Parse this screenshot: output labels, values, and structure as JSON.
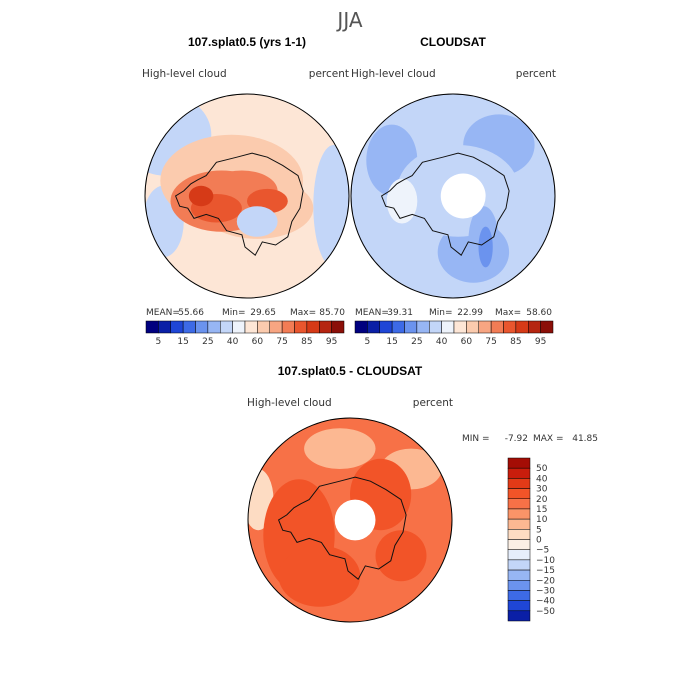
{
  "figure": {
    "title": "JJA"
  },
  "chart_data": [
    {
      "type": "heatmap",
      "projection": "south-polar-stereographic",
      "title": "107.splat0.5 (yrs 1-1)",
      "left_label": "High-level cloud",
      "right_label": "percent",
      "stats": {
        "mean_label": "MEAN=",
        "mean": "55.66",
        "min_label": "Min=",
        "min": "29.65",
        "max_label": "Max=",
        "max": "85.70"
      },
      "colorbar_ticks": [
        "5",
        "15",
        "25",
        "40",
        "60",
        "75",
        "85",
        "95"
      ],
      "colorbar_colors": [
        "#00007f",
        "#0a1fa6",
        "#1f46d6",
        "#3d6ae6",
        "#6b93ee",
        "#97b6f4",
        "#c3d6f8",
        "#eef3fb",
        "#fde6d6",
        "#fbcbae",
        "#f7a582",
        "#f27c55",
        "#e9562e",
        "#d63a17",
        "#b52510",
        "#8b0f08"
      ],
      "regions": [
        {
          "shape": "ellipse",
          "cx": 0.0,
          "cy": 0.0,
          "rx": 1.0,
          "ry": 1.0,
          "value": 60
        },
        {
          "shape": "ellipse",
          "cx": -0.8,
          "cy": -0.6,
          "rx": 0.45,
          "ry": 0.4,
          "value": 45
        },
        {
          "shape": "ellipse",
          "cx": 0.85,
          "cy": 0.1,
          "rx": 0.2,
          "ry": 0.6,
          "value": 45
        },
        {
          "shape": "ellipse",
          "cx": -0.82,
          "cy": 0.25,
          "rx": 0.2,
          "ry": 0.35,
          "value": 45
        },
        {
          "shape": "ellipse",
          "cx": -0.15,
          "cy": -0.15,
          "rx": 0.7,
          "ry": 0.45,
          "value": 65
        },
        {
          "shape": "ellipse",
          "cx": 0.1,
          "cy": 0.12,
          "rx": 0.55,
          "ry": 0.3,
          "value": 65
        },
        {
          "shape": "ellipse",
          "cx": -0.25,
          "cy": 0.05,
          "rx": 0.5,
          "ry": 0.3,
          "value": 75
        },
        {
          "shape": "ellipse",
          "cx": -0.05,
          "cy": -0.05,
          "rx": 0.35,
          "ry": 0.2,
          "value": 75
        },
        {
          "shape": "ellipse",
          "cx": -0.3,
          "cy": 0.12,
          "rx": 0.25,
          "ry": 0.14,
          "value": 80
        },
        {
          "shape": "ellipse",
          "cx": 0.2,
          "cy": 0.05,
          "rx": 0.2,
          "ry": 0.12,
          "value": 80
        },
        {
          "shape": "ellipse",
          "cx": 0.1,
          "cy": 0.25,
          "rx": 0.2,
          "ry": 0.15,
          "value": 45
        },
        {
          "shape": "ellipse",
          "cx": -0.45,
          "cy": 0.0,
          "rx": 0.12,
          "ry": 0.1,
          "value": 85
        }
      ]
    },
    {
      "type": "heatmap",
      "projection": "south-polar-stereographic",
      "title": "CLOUDSAT",
      "left_label": "High-level cloud",
      "right_label": "percent",
      "stats": {
        "mean_label": "MEAN=",
        "mean": "39.31",
        "min_label": "Min=",
        "min": "22.99",
        "max_label": "Max=",
        "max": "58.60"
      },
      "colorbar_ticks": [
        "5",
        "15",
        "25",
        "40",
        "60",
        "75",
        "85",
        "95"
      ],
      "colorbar_colors": [
        "#00007f",
        "#0a1fa6",
        "#1f46d6",
        "#3d6ae6",
        "#6b93ee",
        "#97b6f4",
        "#c3d6f8",
        "#eef3fb",
        "#fde6d6",
        "#fbcbae",
        "#f7a582",
        "#f27c55",
        "#e9562e",
        "#d63a17",
        "#b52510",
        "#8b0f08"
      ],
      "regions": [
        {
          "shape": "ellipse",
          "cx": 0.0,
          "cy": 0.0,
          "rx": 1.0,
          "ry": 1.0,
          "value": 40
        },
        {
          "shape": "ellipse",
          "cx": 0.45,
          "cy": -0.5,
          "rx": 0.35,
          "ry": 0.3,
          "value": 35
        },
        {
          "shape": "ellipse",
          "cx": -0.6,
          "cy": -0.35,
          "rx": 0.25,
          "ry": 0.35,
          "value": 35
        },
        {
          "shape": "ellipse",
          "cx": 0.2,
          "cy": 0.55,
          "rx": 0.35,
          "ry": 0.3,
          "value": 35
        },
        {
          "shape": "ellipse",
          "cx": 0.05,
          "cy": -0.05,
          "rx": 0.6,
          "ry": 0.45,
          "value": 45
        },
        {
          "shape": "ellipse",
          "cx": 0.3,
          "cy": 0.45,
          "rx": 0.15,
          "ry": 0.35,
          "value": 30
        },
        {
          "shape": "ellipse",
          "cx": 0.32,
          "cy": 0.5,
          "rx": 0.07,
          "ry": 0.2,
          "value": 25
        },
        {
          "shape": "ellipse",
          "cx": -0.5,
          "cy": 0.05,
          "rx": 0.15,
          "ry": 0.22,
          "value": 55
        },
        {
          "shape": "ellipse",
          "cx": 0.1,
          "cy": 0.0,
          "rx": 0.22,
          "ry": 0.22,
          "mask": true
        }
      ]
    },
    {
      "type": "heatmap",
      "projection": "south-polar-stereographic",
      "title": "107.splat0.5 - CLOUDSAT",
      "left_label": "High-level cloud",
      "right_label": "percent",
      "stats": {
        "min_label": "MIN =",
        "min": "-7.92",
        "max_label": "MAX =",
        "max": "41.85"
      },
      "colorbar_ticks": [
        "50",
        "40",
        "30",
        "20",
        "15",
        "10",
        "5",
        "0",
        "−5",
        "−10",
        "−15",
        "−20",
        "−30",
        "−40",
        "−50"
      ],
      "colorbar_colors": [
        "#a40d05",
        "#c91d0c",
        "#e23a17",
        "#f25428",
        "#f77147",
        "#fa9468",
        "#fcb892",
        "#fddcc3",
        "#fbefe4",
        "#e6eefb",
        "#c3d6f8",
        "#97b6f4",
        "#6b93ee",
        "#3d6ae6",
        "#1f46d6",
        "#0a1fa6"
      ],
      "regions": [
        {
          "shape": "ellipse",
          "cx": 0.0,
          "cy": 0.0,
          "rx": 1.0,
          "ry": 1.0,
          "value": 15
        },
        {
          "shape": "ellipse",
          "cx": -0.9,
          "cy": -0.2,
          "rx": 0.15,
          "ry": 0.3,
          "value": 0
        },
        {
          "shape": "ellipse",
          "cx": -0.1,
          "cy": -0.7,
          "rx": 0.35,
          "ry": 0.2,
          "value": 8
        },
        {
          "shape": "ellipse",
          "cx": 0.6,
          "cy": -0.5,
          "rx": 0.3,
          "ry": 0.2,
          "value": 8
        },
        {
          "shape": "ellipse",
          "cx": -0.5,
          "cy": 0.15,
          "rx": 0.35,
          "ry": 0.55,
          "value": 25
        },
        {
          "shape": "ellipse",
          "cx": -0.3,
          "cy": 0.55,
          "rx": 0.4,
          "ry": 0.3,
          "value": 25
        },
        {
          "shape": "ellipse",
          "cx": 0.3,
          "cy": -0.25,
          "rx": 0.3,
          "ry": 0.35,
          "value": 25
        },
        {
          "shape": "ellipse",
          "cx": 0.5,
          "cy": 0.35,
          "rx": 0.25,
          "ry": 0.25,
          "value": 20
        },
        {
          "shape": "ellipse",
          "cx": 0.05,
          "cy": 0.0,
          "rx": 0.2,
          "ry": 0.2,
          "mask": true
        }
      ]
    }
  ]
}
